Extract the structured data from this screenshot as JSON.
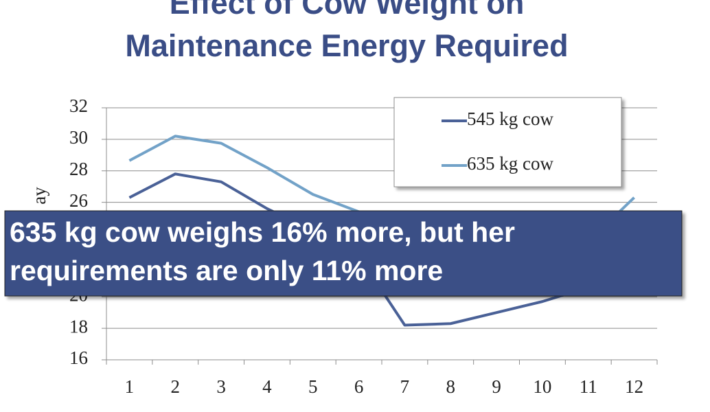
{
  "chart_data": {
    "type": "line",
    "title": [
      "Effect of Cow Weight on",
      "Maintenance Energy Required"
    ],
    "y_label": "ay",
    "categories": [
      "1",
      "2",
      "3",
      "4",
      "5",
      "6",
      "7",
      "8",
      "9",
      "10",
      "11",
      "12"
    ],
    "series": [
      {
        "name": "545 kg cow",
        "color": "#4a6197",
        "values": [
          26.3,
          27.8,
          27.3,
          25.6,
          24.2,
          22.6,
          18.2,
          18.3,
          19.0,
          19.7,
          20.6,
          21.6
        ]
      },
      {
        "name": "635 kg cow",
        "color": "#72a2c8",
        "values": [
          28.65,
          30.2,
          29.75,
          28.2,
          26.5,
          25.4,
          20.3,
          20.4,
          21.1,
          21.9,
          23.5,
          26.3
        ]
      }
    ],
    "ylim": [
      16,
      32
    ],
    "yticks": [
      16,
      18,
      20,
      22,
      24,
      26,
      28,
      30,
      32
    ],
    "grid": true,
    "legend": "top-right",
    "annotation": [
      "635 kg cow weighs 16% more, but her",
      "requirements are only 11% more"
    ]
  }
}
